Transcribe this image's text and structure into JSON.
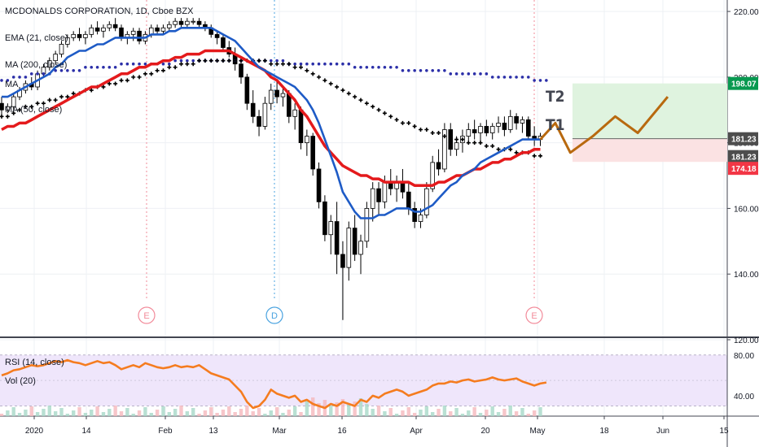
{
  "legend": {
    "title": "MCDONALDS CORPORATION, 1D, Cboe BZX",
    "ema": "EMA (21, close)",
    "ma200": "MA (200, close)",
    "ma_mid": "MA",
    "ma50": "MA (50, close)",
    "rsi": "RSI (14, close)",
    "vol": "Vol (20)"
  },
  "chart_data": {
    "type": "candlestick",
    "price_axis": {
      "ylim": [
        120,
        222
      ],
      "ticks": [
        "220.00",
        "200.00",
        "180.00",
        "160.00",
        "140.00",
        "120.00"
      ]
    },
    "rsi_axis": {
      "ticks": [
        "80.00",
        "40.00"
      ]
    },
    "x_axis": {
      "tick_labels": [
        "2020",
        "14",
        "Feb",
        "13",
        "Mar",
        "16",
        "Apr",
        "20",
        "May",
        "18",
        "Jun",
        "15"
      ]
    },
    "price_tags": [
      {
        "label": "198.07",
        "color": "#089950"
      },
      {
        "label": "181.23",
        "color": "#4d4d4d"
      },
      {
        "label": "181.23",
        "color": "#4d4d4d"
      },
      {
        "label": "174.18",
        "color": "#f23645"
      }
    ],
    "targets": [
      "T2",
      "T1"
    ],
    "event_markers": [
      "E",
      "D",
      "E"
    ],
    "candles": [
      [
        192,
        194,
        188,
        190
      ],
      [
        190,
        192,
        189,
        191
      ],
      [
        191,
        195,
        190,
        194
      ],
      [
        194,
        197,
        193,
        196
      ],
      [
        196,
        199,
        195,
        198
      ],
      [
        198,
        200,
        196,
        197
      ],
      [
        197,
        202,
        196,
        201
      ],
      [
        201,
        204,
        200,
        203
      ],
      [
        203,
        206,
        202,
        205
      ],
      [
        205,
        208,
        204,
        207
      ],
      [
        207,
        211,
        206,
        210
      ],
      [
        210,
        213,
        209,
        212
      ],
      [
        212,
        214,
        211,
        213
      ],
      [
        213,
        215,
        211,
        212
      ],
      [
        212,
        214,
        210,
        213
      ],
      [
        213,
        216,
        212,
        215
      ],
      [
        215,
        217,
        213,
        214
      ],
      [
        214,
        216,
        212,
        215
      ],
      [
        215,
        217,
        214,
        216
      ],
      [
        216,
        218,
        214,
        215
      ],
      [
        215,
        216,
        211,
        212
      ],
      [
        212,
        214,
        210,
        213
      ],
      [
        213,
        215,
        211,
        214
      ],
      [
        214,
        215,
        210,
        211
      ],
      [
        211,
        214,
        210,
        213
      ],
      [
        213,
        216,
        212,
        215
      ],
      [
        215,
        216,
        213,
        214
      ],
      [
        214,
        216,
        213,
        215
      ],
      [
        215,
        217,
        214,
        216
      ],
      [
        216,
        218,
        215,
        217
      ],
      [
        217,
        218,
        215,
        216
      ],
      [
        216,
        218,
        215,
        217
      ],
      [
        217,
        218,
        216,
        217
      ],
      [
        217,
        218,
        215,
        216
      ],
      [
        216,
        217,
        214,
        215
      ],
      [
        215,
        216,
        212,
        213
      ],
      [
        213,
        214,
        210,
        212
      ],
      [
        212,
        213,
        208,
        209
      ],
      [
        209,
        211,
        206,
        207
      ],
      [
        207,
        209,
        202,
        204
      ],
      [
        204,
        206,
        198,
        200
      ],
      [
        200,
        201,
        190,
        192
      ],
      [
        192,
        196,
        186,
        188
      ],
      [
        188,
        190,
        182,
        185
      ],
      [
        185,
        194,
        184,
        192
      ],
      [
        192,
        198,
        190,
        196
      ],
      [
        196,
        199,
        192,
        194
      ],
      [
        194,
        197,
        191,
        195
      ],
      [
        195,
        196,
        186,
        188
      ],
      [
        188,
        192,
        184,
        190
      ],
      [
        190,
        191,
        178,
        180
      ],
      [
        180,
        184,
        176,
        182
      ],
      [
        182,
        183,
        170,
        172
      ],
      [
        172,
        174,
        160,
        162
      ],
      [
        162,
        164,
        150,
        152
      ],
      [
        152,
        158,
        146,
        156
      ],
      [
        156,
        162,
        140,
        146
      ],
      [
        146,
        150,
        126,
        142
      ],
      [
        142,
        156,
        138,
        154
      ],
      [
        154,
        158,
        144,
        146
      ],
      [
        146,
        152,
        140,
        150
      ],
      [
        150,
        162,
        148,
        160
      ],
      [
        160,
        168,
        156,
        166
      ],
      [
        166,
        168,
        158,
        162
      ],
      [
        162,
        170,
        160,
        168
      ],
      [
        168,
        172,
        164,
        166
      ],
      [
        166,
        170,
        162,
        168
      ],
      [
        168,
        172,
        163,
        165
      ],
      [
        165,
        168,
        158,
        160
      ],
      [
        160,
        162,
        154,
        156
      ],
      [
        156,
        160,
        154,
        158
      ],
      [
        158,
        168,
        157,
        166
      ],
      [
        166,
        176,
        165,
        174
      ],
      [
        174,
        178,
        170,
        172
      ],
      [
        172,
        186,
        171,
        184
      ],
      [
        184,
        186,
        176,
        178
      ],
      [
        178,
        182,
        176,
        180
      ],
      [
        180,
        184,
        177,
        182
      ],
      [
        182,
        186,
        180,
        184
      ],
      [
        184,
        187,
        181,
        183
      ],
      [
        183,
        186,
        180,
        185
      ],
      [
        185,
        187,
        182,
        183
      ],
      [
        183,
        186,
        181,
        185
      ],
      [
        185,
        188,
        183,
        186
      ],
      [
        186,
        188,
        182,
        184
      ],
      [
        184,
        190,
        183,
        188
      ],
      [
        188,
        189,
        184,
        186
      ],
      [
        186,
        188,
        183,
        187
      ],
      [
        187,
        188,
        181,
        182
      ],
      [
        182,
        185,
        179,
        181
      ],
      [
        181,
        183,
        179,
        182
      ]
    ],
    "ema21": [
      194,
      194,
      195,
      196,
      197,
      198,
      199,
      200,
      201,
      203,
      204,
      206,
      207,
      208,
      208,
      209,
      210,
      210,
      211,
      212,
      212,
      212,
      212,
      212,
      212,
      213,
      213,
      213,
      214,
      214,
      215,
      215,
      215,
      215,
      215,
      215,
      214,
      213,
      212,
      211,
      209,
      207,
      205,
      203,
      202,
      201,
      200,
      199,
      198,
      197,
      195,
      193,
      190,
      186,
      181,
      176,
      171,
      165,
      162,
      159,
      157,
      157,
      157,
      158,
      158,
      159,
      160,
      160,
      160,
      159,
      159,
      160,
      161,
      163,
      165,
      167,
      168,
      170,
      171,
      172,
      174,
      175,
      176,
      177,
      178,
      179,
      180,
      181,
      181,
      181,
      181
    ],
    "ma50": [
      184,
      185,
      185,
      186,
      186,
      187,
      188,
      189,
      190,
      191,
      192,
      193,
      194,
      195,
      196,
      197,
      197,
      198,
      199,
      200,
      201,
      201,
      202,
      203,
      203,
      204,
      204,
      205,
      205,
      206,
      206,
      207,
      207,
      207,
      208,
      208,
      208,
      208,
      208,
      207,
      206,
      205,
      204,
      203,
      202,
      200,
      199,
      197,
      195,
      193,
      190,
      188,
      185,
      182,
      179,
      177,
      175,
      173,
      172,
      171,
      170,
      170,
      169,
      169,
      168,
      168,
      168,
      168,
      168,
      167,
      167,
      167,
      167,
      168,
      168,
      169,
      170,
      170,
      171,
      172,
      172,
      173,
      174,
      174,
      175,
      175,
      176,
      177,
      177,
      178,
      178
    ],
    "ma200": [
      188,
      188,
      189,
      190,
      191,
      191,
      192,
      192,
      193,
      193,
      194,
      194,
      195,
      195,
      196,
      196,
      197,
      197,
      198,
      198,
      199,
      199,
      200,
      200,
      201,
      201,
      202,
      202,
      203,
      203,
      204,
      204,
      204,
      205,
      205,
      205,
      205,
      205,
      205,
      205,
      205,
      205,
      205,
      205,
      205,
      204,
      204,
      204,
      204,
      203,
      203,
      202,
      201,
      200,
      199,
      198,
      197,
      196,
      195,
      194,
      193,
      192,
      191,
      190,
      189,
      188,
      187,
      186,
      186,
      185,
      184,
      184,
      183,
      183,
      182,
      182,
      181,
      181,
      180,
      180,
      180,
      179,
      179,
      178,
      178,
      178,
      177,
      177,
      177,
      176,
      176
    ],
    "ma_mid": [
      199,
      199,
      200,
      200,
      200,
      201,
      201,
      201,
      201,
      202,
      202,
      202,
      202,
      202,
      203,
      203,
      203,
      203,
      203,
      203,
      204,
      204,
      204,
      204,
      204,
      204,
      204,
      204,
      204,
      205,
      205,
      205,
      205,
      205,
      205,
      205,
      205,
      205,
      205,
      205,
      205,
      205,
      205,
      205,
      205,
      205,
      205,
      205,
      204,
      204,
      204,
      204,
      204,
      204,
      204,
      204,
      204,
      204,
      204,
      203,
      203,
      203,
      203,
      203,
      203,
      203,
      203,
      202,
      202,
      202,
      202,
      202,
      202,
      202,
      202,
      201,
      201,
      201,
      201,
      201,
      201,
      201,
      200,
      200,
      200,
      200,
      200,
      200,
      200,
      199,
      199,
      199
    ],
    "projection": [
      [
        0,
        181
      ],
      [
        4,
        186
      ],
      [
        8,
        177
      ],
      [
        14,
        182
      ],
      [
        20,
        188
      ],
      [
        26,
        183
      ],
      [
        34,
        194
      ]
    ],
    "rsi": [
      60,
      62,
      65,
      66,
      68,
      70,
      69,
      70,
      72,
      74,
      73,
      75,
      73,
      72,
      70,
      72,
      74,
      72,
      73,
      70,
      66,
      68,
      70,
      68,
      72,
      70,
      68,
      67,
      68,
      70,
      68,
      69,
      68,
      70,
      66,
      62,
      60,
      58,
      56,
      50,
      44,
      34,
      28,
      30,
      36,
      46,
      42,
      40,
      38,
      40,
      34,
      36,
      32,
      30,
      28,
      32,
      30,
      34,
      32,
      30,
      36,
      34,
      40,
      38,
      42,
      44,
      46,
      44,
      40,
      42,
      44,
      46,
      50,
      52,
      52,
      54,
      53,
      55,
      56,
      54,
      55,
      56,
      58,
      56,
      55,
      56,
      57,
      54,
      52,
      50,
      52,
      53
    ],
    "colors": {
      "ema": "#1e5bc6",
      "ma50": "#e41a1c",
      "ma200": "#000000",
      "ma_mid": "#2b2fa8",
      "projection": "#b8690f",
      "rsi": "#f57c1f",
      "zone_up": "#dff3df",
      "zone_down": "#fbe2e3"
    }
  }
}
